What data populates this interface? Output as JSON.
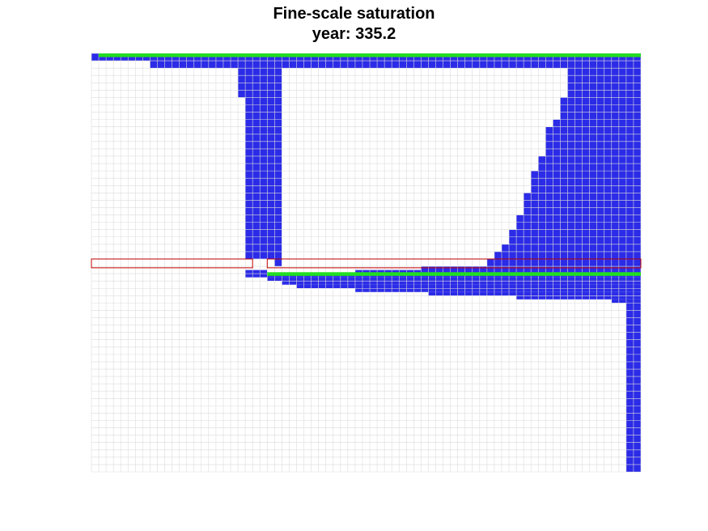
{
  "figure": {
    "title": "Fine-scale saturation",
    "subtitle": "year: 335.2"
  },
  "chart_data": {
    "type": "heatmap",
    "title": "Fine-scale saturation",
    "subtitle": "year: 335.2",
    "xlabel": "",
    "ylabel": "",
    "grid": true,
    "grid_cells": {
      "nx": 75,
      "ny": 57
    },
    "colors": {
      "background": "#ffffff",
      "grid_line": "#dcdcdc",
      "saturated": "#2b2be8",
      "saturated_light": "#3c3cf0",
      "injection_well": "#22dd22",
      "sealing_layer": "#c00000"
    },
    "plume_profile_top": [
      [
        0,
        0,
        1,
        1
      ],
      [
        1,
        0,
        75,
        1
      ],
      [
        8,
        1,
        75,
        2
      ],
      [
        20,
        2,
        22,
        6
      ],
      [
        21,
        2,
        25,
        28
      ],
      [
        25,
        2,
        26,
        29
      ],
      [
        65,
        2,
        75,
        30
      ],
      [
        64,
        6,
        65,
        30
      ],
      [
        63,
        9,
        64,
        30
      ],
      [
        62,
        10,
        63,
        30
      ],
      [
        61,
        14,
        62,
        30
      ],
      [
        60,
        16,
        61,
        30
      ],
      [
        59,
        19,
        60,
        30
      ],
      [
        58,
        22,
        59,
        30
      ],
      [
        57,
        24,
        58,
        30
      ],
      [
        56,
        26,
        57,
        30
      ],
      [
        55,
        27,
        56,
        30
      ],
      [
        54,
        28,
        55,
        30
      ],
      [
        45,
        29,
        54,
        30
      ],
      [
        36,
        29.5,
        45,
        30
      ]
    ],
    "plume_profile_bottom": [
      [
        21,
        29.5,
        24,
        30.5
      ],
      [
        24,
        30,
        75,
        30.5
      ],
      [
        24,
        30.5,
        75,
        31
      ],
      [
        26,
        31,
        75,
        31.5
      ],
      [
        28,
        31.5,
        75,
        32
      ],
      [
        36,
        32,
        75,
        32.5
      ],
      [
        46,
        32.5,
        75,
        33
      ],
      [
        58,
        33,
        75,
        33.5
      ],
      [
        71,
        33.5,
        75,
        34
      ],
      [
        73,
        34,
        75,
        57
      ]
    ],
    "injection_bands": [
      [
        1,
        0,
        75,
        0.5
      ],
      [
        24,
        29.8,
        75,
        30.3
      ]
    ],
    "sealing_layers": [
      [
        0,
        28,
        22,
        29.2
      ],
      [
        24,
        28,
        75,
        29.2
      ]
    ]
  }
}
